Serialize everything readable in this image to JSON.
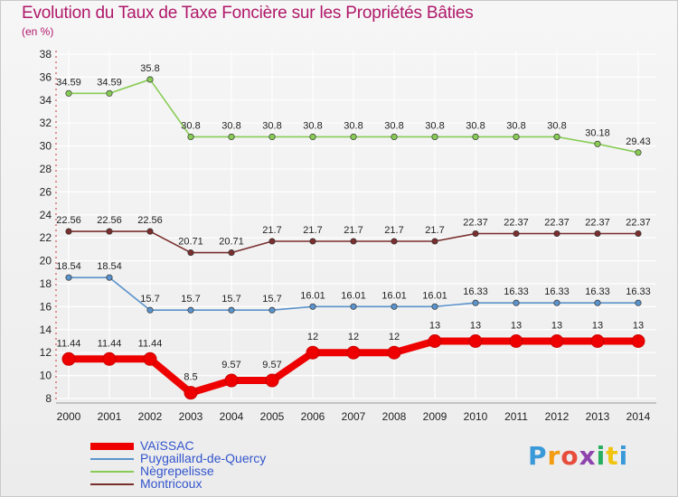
{
  "title": "Evolution du Taux de Taxe Foncière sur les Propriétés Bâties",
  "subtitle": "(en %)",
  "logo": {
    "text": "Proxiti",
    "letters": [
      {
        "ch": "P",
        "color": "#3a9ad9"
      },
      {
        "ch": "r",
        "color": "#f39c12"
      },
      {
        "ch": "o",
        "color": "#e74c3c"
      },
      {
        "ch": "x",
        "color": "#8e44ad"
      },
      {
        "ch": "i",
        "color": "#27ae60"
      },
      {
        "ch": "t",
        "color": "#f1c40f"
      },
      {
        "ch": "i",
        "color": "#3a9ad9"
      }
    ]
  },
  "chart_data": {
    "type": "line",
    "title": "Evolution du Taux de Taxe Foncière sur les Propriétés Bâties",
    "ylabel": "(en %)",
    "xlabel": "",
    "ylim": [
      8,
      38
    ],
    "yticks": [
      8,
      10,
      12,
      14,
      16,
      18,
      20,
      22,
      24,
      26,
      28,
      30,
      32,
      34,
      36,
      38
    ],
    "categories": [
      "2000",
      "2001",
      "2002",
      "2003",
      "2004",
      "2005",
      "2006",
      "2007",
      "2008",
      "2009",
      "2010",
      "2011",
      "2012",
      "2013",
      "2014"
    ],
    "series": [
      {
        "name": "VAïSSAC",
        "color": "#ee0000",
        "values": [
          11.44,
          11.44,
          11.44,
          8.5,
          9.57,
          9.57,
          12,
          12,
          12,
          13,
          13,
          13,
          13,
          13,
          13
        ],
        "labels": [
          "11.44",
          "11.44",
          "11.44",
          "8.5",
          "9.57",
          "9.57",
          "12",
          "12",
          "12",
          "13",
          "13",
          "13",
          "13",
          "13",
          "13"
        ]
      },
      {
        "name": "Puygaillard-de-Quercy",
        "color": "#5b93cc",
        "values": [
          18.54,
          18.54,
          15.7,
          15.7,
          15.7,
          15.7,
          16.01,
          16.01,
          16.01,
          16.01,
          16.33,
          16.33,
          16.33,
          16.33,
          16.33
        ],
        "labels": [
          "18.54",
          "18.54",
          "15.7",
          "15.7",
          "15.7",
          "15.7",
          "16.01",
          "16.01",
          "16.01",
          "16.01",
          "16.33",
          "16.33",
          "16.33",
          "16.33",
          "16.33"
        ]
      },
      {
        "name": "Nègrepelisse",
        "color": "#88cc55",
        "values": [
          34.59,
          34.59,
          35.8,
          30.8,
          30.8,
          30.8,
          30.8,
          30.8,
          30.8,
          30.8,
          30.8,
          30.8,
          30.8,
          30.18,
          29.43
        ],
        "labels": [
          "34.59",
          "34.59",
          "35.8",
          "30.8",
          "30.8",
          "30.8",
          "30.8",
          "30.8",
          "30.8",
          "30.8",
          "30.8",
          "30.8",
          "30.8",
          "30.18",
          "29.43"
        ]
      },
      {
        "name": "Montricoux",
        "color": "#7a2e2e",
        "values": [
          22.56,
          22.56,
          22.56,
          20.71,
          20.71,
          21.7,
          21.7,
          21.7,
          21.7,
          21.7,
          22.37,
          22.37,
          22.37,
          22.37,
          22.37
        ],
        "labels": [
          "22.56",
          "22.56",
          "22.56",
          "20.71",
          "20.71",
          "21.7",
          "21.7",
          "21.7",
          "21.7",
          "21.7",
          "22.37",
          "22.37",
          "22.37",
          "22.37",
          "22.37"
        ]
      }
    ]
  }
}
